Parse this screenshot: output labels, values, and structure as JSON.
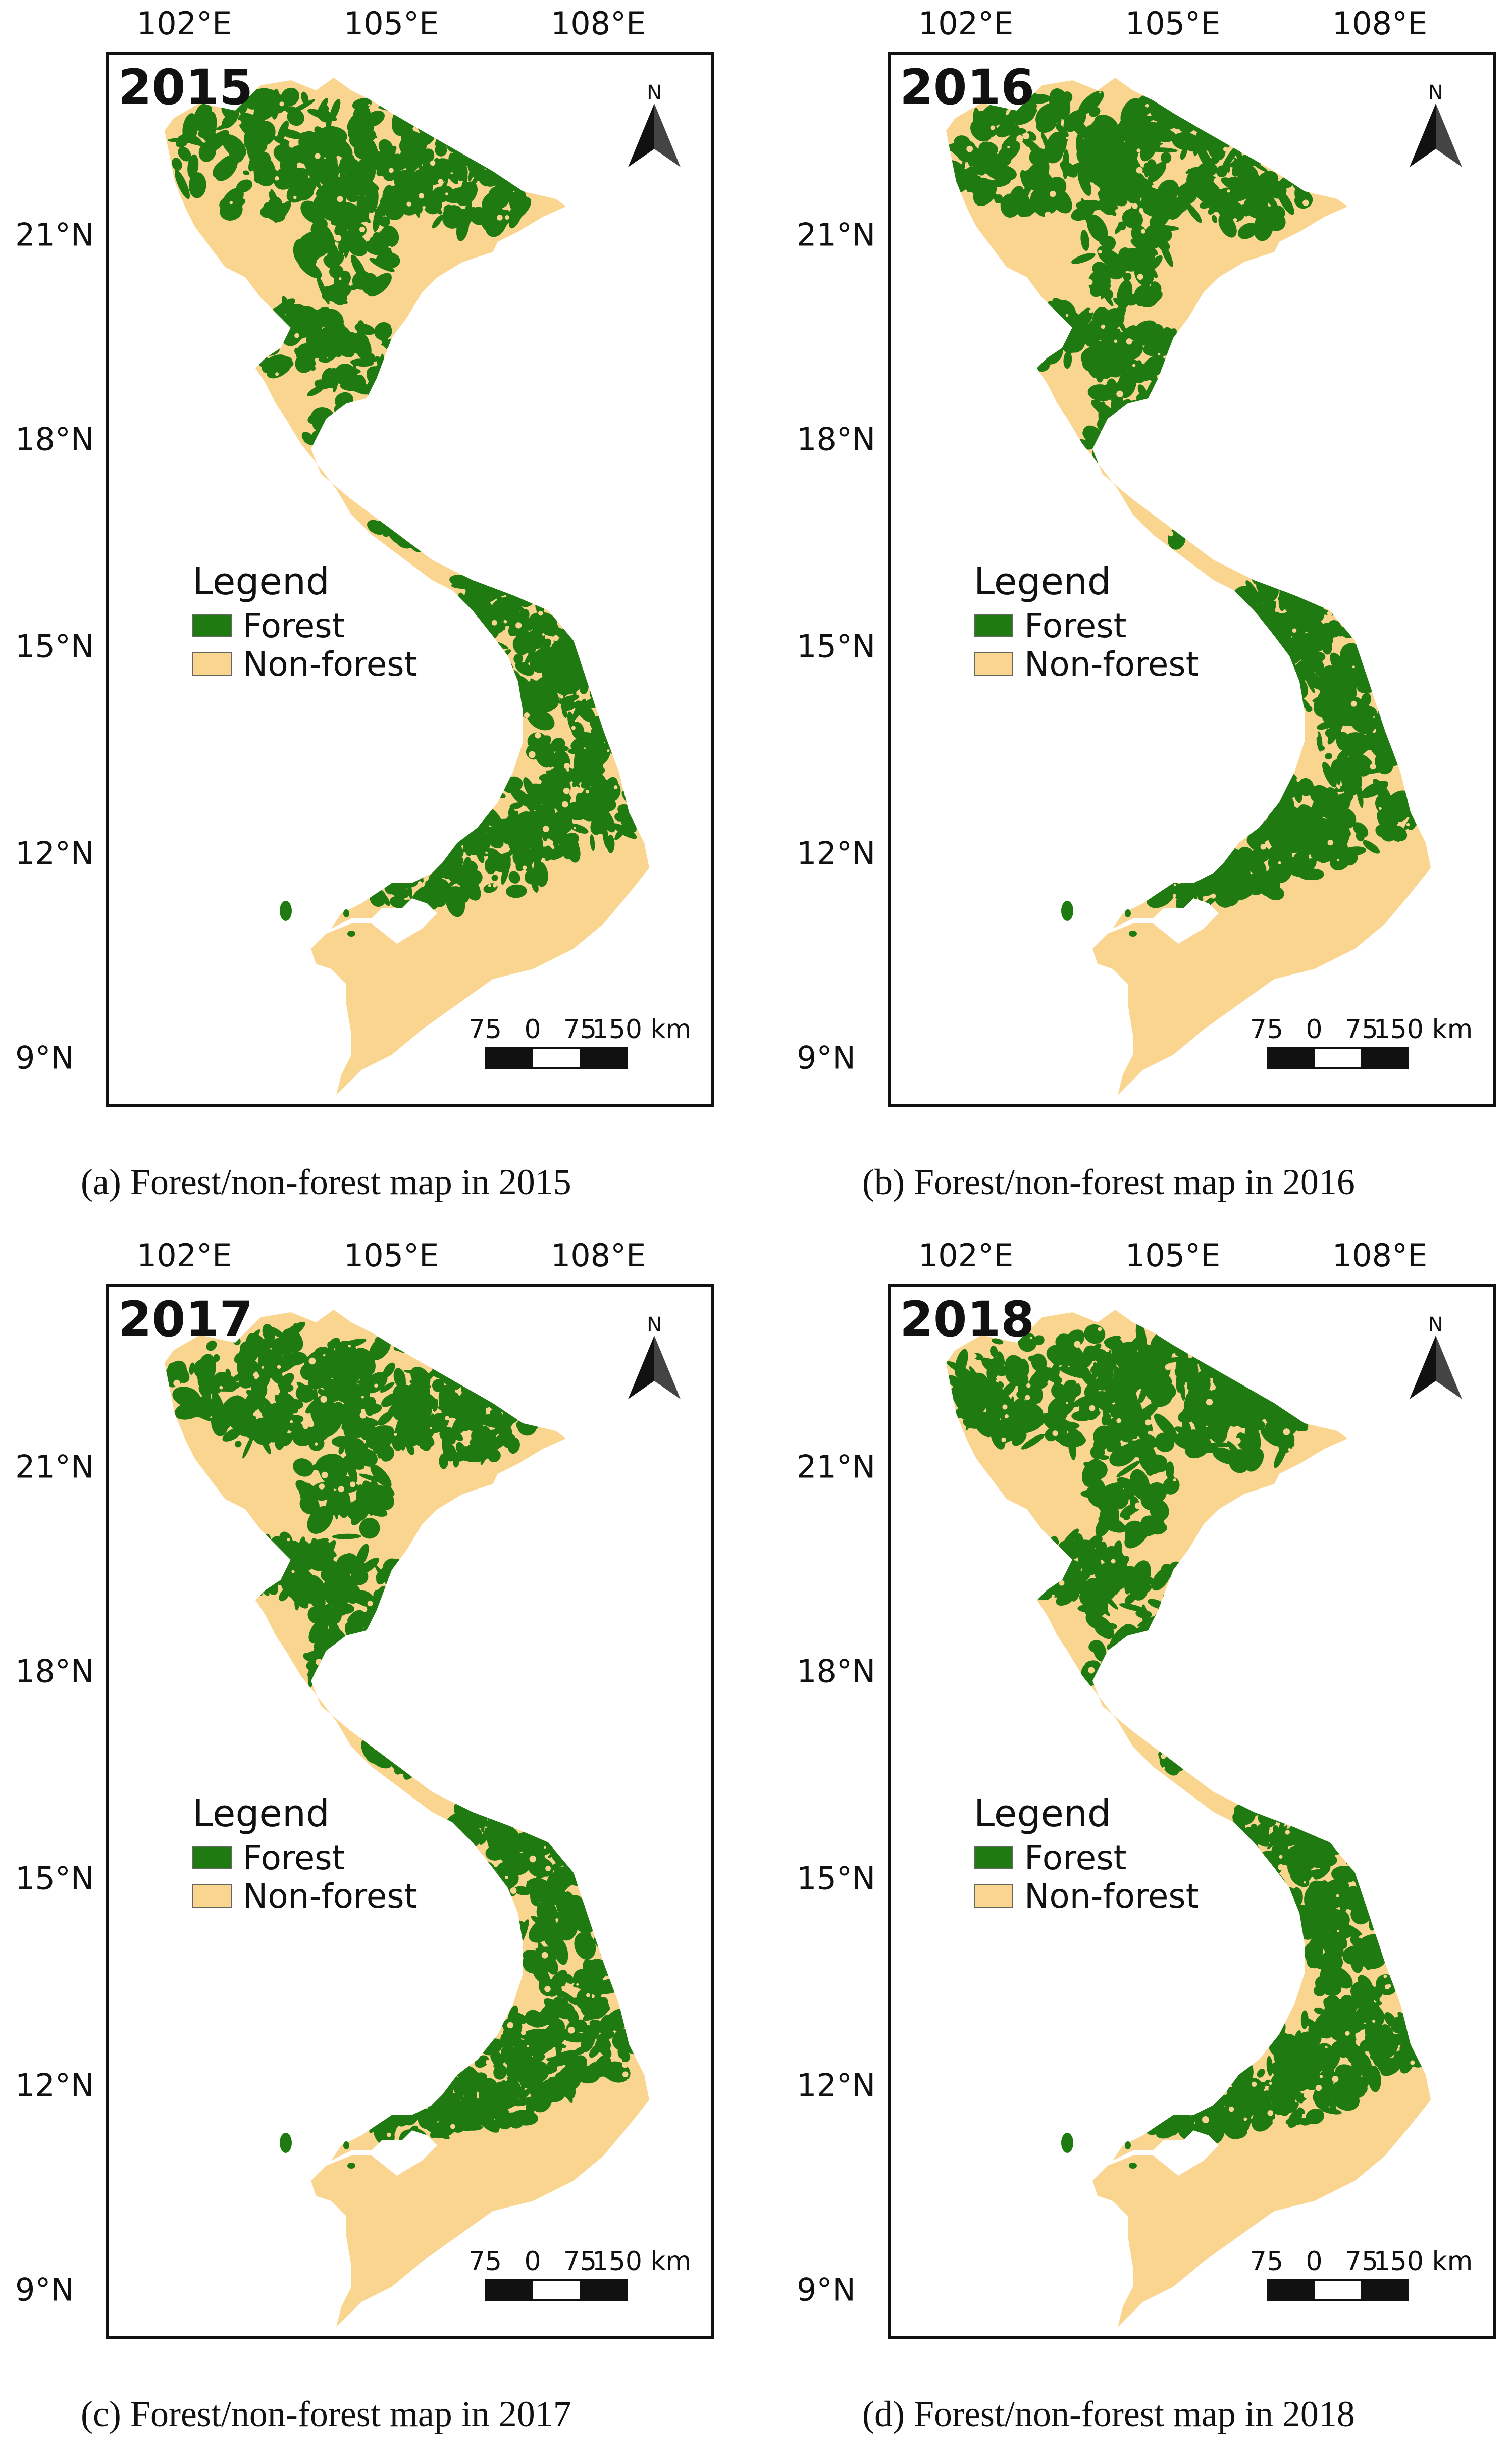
{
  "colors": {
    "forest": "#1f7a12",
    "nonforest": "#fad58f"
  },
  "lon_labels": [
    "102°E",
    "105°E",
    "108°E"
  ],
  "lat_labels": [
    "21°N",
    "18°N",
    "15°N",
    "12°N",
    "9°N"
  ],
  "legend": {
    "title": "Legend",
    "forest": "Forest",
    "nonforest": "Non-forest"
  },
  "north_label": "N",
  "scale_labels": [
    "75",
    "0",
    "75",
    "150 km"
  ],
  "panels": [
    {
      "year": "2015",
      "caption": "(a) Forest/non-forest map in 2015"
    },
    {
      "year": "2016",
      "caption": "(b) Forest/non-forest map in 2016"
    },
    {
      "year": "2017",
      "caption": "(c) Forest/non-forest map in 2017"
    },
    {
      "year": "2018",
      "caption": "(d) Forest/non-forest map in 2018"
    }
  ]
}
